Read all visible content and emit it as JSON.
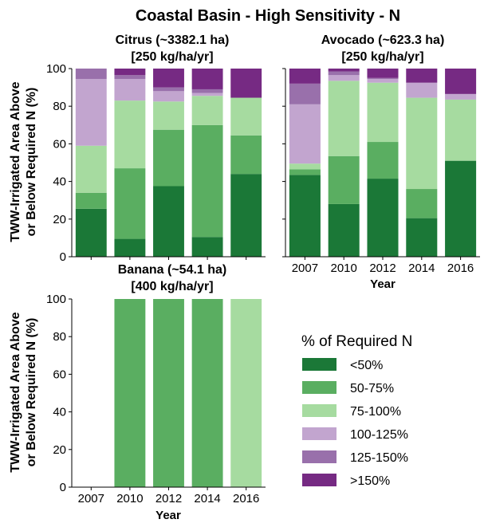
{
  "figure_title": "Coastal Basin - High Sensitivity - N",
  "ylabel_line1": "TWW-Irrigated Area Above",
  "ylabel_line2": "or Below Required N (%)",
  "xlabel": "Year",
  "legend": {
    "title": "% of Required N",
    "items": [
      {
        "label": "<50%",
        "color": "#1b7837"
      },
      {
        "label": "50-75%",
        "color": "#5aae61"
      },
      {
        "label": "75-100%",
        "color": "#a6dba0"
      },
      {
        "label": "100-125%",
        "color": "#c2a5cf"
      },
      {
        "label": "125-150%",
        "color": "#9970ab"
      },
      {
        "label": ">150%",
        "color": "#762a83"
      }
    ]
  },
  "chart_data": [
    {
      "type": "bar",
      "stacked": true,
      "title_line1": "Citrus (~3382.1 ha)",
      "title_line2": "[250 kg/ha/yr]",
      "categories": [
        "2007",
        "2010",
        "2012",
        "2014",
        "2016"
      ],
      "ylim": [
        0,
        100
      ],
      "yticks": [
        0,
        20,
        40,
        60,
        80,
        100
      ],
      "series": [
        {
          "name": "<50%",
          "values": [
            25.5,
            9.5,
            37.5,
            10.5,
            44
          ]
        },
        {
          "name": "50-75%",
          "values": [
            8.5,
            37.5,
            30,
            59.5,
            20.5
          ]
        },
        {
          "name": "75-100%",
          "values": [
            25,
            36,
            15,
            15.5,
            20
          ]
        },
        {
          "name": "100-125%",
          "values": [
            35.5,
            11.5,
            5.5,
            1.5,
            0
          ]
        },
        {
          "name": "125-150%",
          "values": [
            5.5,
            2,
            2,
            2,
            0
          ]
        },
        {
          "name": ">150%",
          "values": [
            0,
            3.5,
            10,
            11,
            15.5
          ]
        }
      ]
    },
    {
      "type": "bar",
      "stacked": true,
      "title_line1": "Avocado (~623.3 ha)",
      "title_line2": "[250 kg/ha/yr]",
      "categories": [
        "2007",
        "2010",
        "2012",
        "2014",
        "2016"
      ],
      "ylim": [
        0,
        100
      ],
      "yticks": [
        0,
        20,
        40,
        60,
        80,
        100
      ],
      "series": [
        {
          "name": "<50%",
          "values": [
            43.5,
            28,
            41.5,
            20.5,
            51
          ]
        },
        {
          "name": "50-75%",
          "values": [
            3,
            25.5,
            19.5,
            15.5,
            0
          ]
        },
        {
          "name": "75-100%",
          "values": [
            3,
            40,
            31.5,
            48.5,
            32.5
          ]
        },
        {
          "name": "100-125%",
          "values": [
            31.5,
            3,
            2,
            8,
            3
          ]
        },
        {
          "name": "125-150%",
          "values": [
            11,
            2,
            0.5,
            0,
            0
          ]
        },
        {
          "name": ">150%",
          "values": [
            8,
            1.5,
            5,
            7.5,
            13.5
          ]
        }
      ]
    },
    {
      "type": "bar",
      "stacked": true,
      "title_line1": "Banana (~54.1 ha)",
      "title_line2": "[400 kg/ha/yr]",
      "categories": [
        "2007",
        "2010",
        "2012",
        "2014",
        "2016"
      ],
      "ylim": [
        0,
        100
      ],
      "yticks": [
        0,
        20,
        40,
        60,
        80,
        100
      ],
      "series": [
        {
          "name": "<50%",
          "values": [
            0,
            0,
            0,
            0,
            0
          ]
        },
        {
          "name": "50-75%",
          "values": [
            0,
            100,
            100,
            100,
            0
          ]
        },
        {
          "name": "75-100%",
          "values": [
            0,
            0,
            0,
            0,
            100
          ]
        },
        {
          "name": "100-125%",
          "values": [
            0,
            0,
            0,
            0,
            0
          ]
        },
        {
          "name": "125-150%",
          "values": [
            0,
            0,
            0,
            0,
            0
          ]
        },
        {
          "name": ">150%",
          "values": [
            0,
            0,
            0,
            0,
            0
          ]
        }
      ]
    }
  ]
}
